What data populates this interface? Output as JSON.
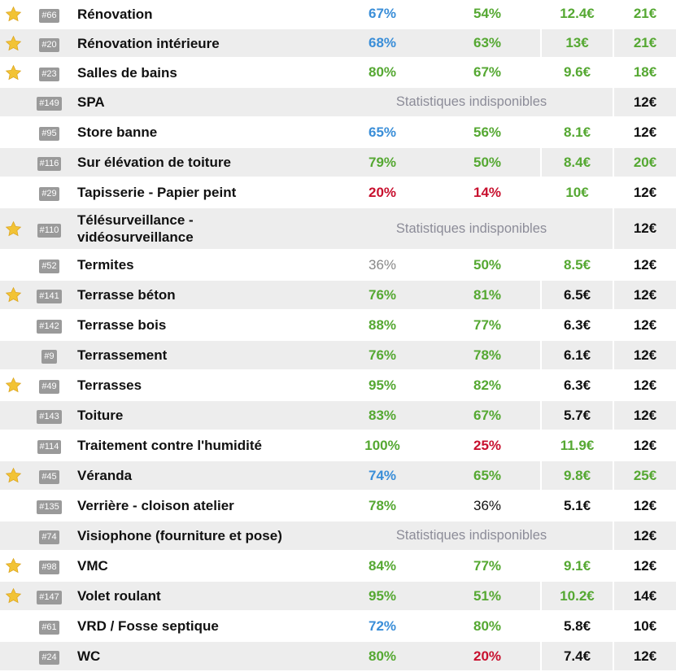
{
  "rows": [
    {
      "star": true,
      "id": "#66",
      "name": "Rénovation",
      "pct1": "67%",
      "pct1_color": "#3a8ed8",
      "pct2": "54%",
      "pct2_color": "#55a832",
      "price": "12.4€",
      "price_color": "#55a832",
      "offer": "21€",
      "offer_color": "#55a832",
      "stats_na": false
    },
    {
      "star": true,
      "id": "#20",
      "name": "Rénovation intérieure",
      "pct1": "68%",
      "pct1_color": "#3a8ed8",
      "pct2": "63%",
      "pct2_color": "#55a832",
      "price": "13€",
      "price_color": "#55a832",
      "offer": "21€",
      "offer_color": "#55a832",
      "stats_na": false
    },
    {
      "star": true,
      "id": "#23",
      "name": "Salles de bains",
      "pct1": "80%",
      "pct1_color": "#55a832",
      "pct2": "67%",
      "pct2_color": "#55a832",
      "price": "9.6€",
      "price_color": "#55a832",
      "offer": "18€",
      "offer_color": "#55a832",
      "stats_na": false
    },
    {
      "star": false,
      "id": "#149",
      "name": "SPA",
      "stats_na": true,
      "na_label": "Statistiques indisponibles",
      "offer": "12€",
      "offer_color": "#111111"
    },
    {
      "star": false,
      "id": "#95",
      "name": "Store banne",
      "pct1": "65%",
      "pct1_color": "#3a8ed8",
      "pct2": "56%",
      "pct2_color": "#55a832",
      "price": "8.1€",
      "price_color": "#55a832",
      "offer": "12€",
      "offer_color": "#111111",
      "stats_na": false
    },
    {
      "star": false,
      "id": "#116",
      "name": "Sur élévation de toiture",
      "pct1": "79%",
      "pct1_color": "#55a832",
      "pct2": "50%",
      "pct2_color": "#55a832",
      "price": "8.4€",
      "price_color": "#55a832",
      "offer": "20€",
      "offer_color": "#55a832",
      "stats_na": false
    },
    {
      "star": false,
      "id": "#29",
      "name": "Tapisserie - Papier peint",
      "pct1": "20%",
      "pct1_color": "#c8102e",
      "pct2": "14%",
      "pct2_color": "#c8102e",
      "price": "10€",
      "price_color": "#55a832",
      "offer": "12€",
      "offer_color": "#111111",
      "stats_na": false
    },
    {
      "star": true,
      "id": "#110",
      "name": "Télésurveillance - vidéosurveillance",
      "stats_na": true,
      "na_label": "Statistiques indisponibles",
      "offer": "12€",
      "offer_color": "#111111"
    },
    {
      "star": false,
      "id": "#52",
      "name": "Termites",
      "pct1": "36%",
      "pct1_color": "#888888",
      "pct1_weight": "normal",
      "pct2": "50%",
      "pct2_color": "#55a832",
      "price": "8.5€",
      "price_color": "#55a832",
      "offer": "12€",
      "offer_color": "#111111",
      "stats_na": false
    },
    {
      "star": true,
      "id": "#141",
      "name": "Terrasse béton",
      "pct1": "76%",
      "pct1_color": "#55a832",
      "pct2": "81%",
      "pct2_color": "#55a832",
      "price": "6.5€",
      "price_color": "#111111",
      "offer": "12€",
      "offer_color": "#111111",
      "stats_na": false
    },
    {
      "star": false,
      "id": "#142",
      "name": "Terrasse bois",
      "pct1": "88%",
      "pct1_color": "#55a832",
      "pct2": "77%",
      "pct2_color": "#55a832",
      "price": "6.3€",
      "price_color": "#111111",
      "offer": "12€",
      "offer_color": "#111111",
      "stats_na": false
    },
    {
      "star": false,
      "id": "#9",
      "name": "Terrassement",
      "pct1": "76%",
      "pct1_color": "#55a832",
      "pct2": "78%",
      "pct2_color": "#55a832",
      "price": "6.1€",
      "price_color": "#111111",
      "offer": "12€",
      "offer_color": "#111111",
      "stats_na": false
    },
    {
      "star": true,
      "id": "#49",
      "name": "Terrasses",
      "pct1": "95%",
      "pct1_color": "#55a832",
      "pct2": "82%",
      "pct2_color": "#55a832",
      "price": "6.3€",
      "price_color": "#111111",
      "offer": "12€",
      "offer_color": "#111111",
      "stats_na": false
    },
    {
      "star": false,
      "id": "#143",
      "name": "Toiture",
      "pct1": "83%",
      "pct1_color": "#55a832",
      "pct2": "67%",
      "pct2_color": "#55a832",
      "price": "5.7€",
      "price_color": "#111111",
      "offer": "12€",
      "offer_color": "#111111",
      "stats_na": false
    },
    {
      "star": false,
      "id": "#114",
      "name": "Traitement contre l'humidité",
      "pct1": "100%",
      "pct1_color": "#55a832",
      "pct2": "25%",
      "pct2_color": "#c8102e",
      "price": "11.9€",
      "price_color": "#55a832",
      "offer": "12€",
      "offer_color": "#111111",
      "stats_na": false
    },
    {
      "star": true,
      "id": "#45",
      "name": "Véranda",
      "pct1": "74%",
      "pct1_color": "#3a8ed8",
      "pct2": "65%",
      "pct2_color": "#55a832",
      "price": "9.8€",
      "price_color": "#55a832",
      "offer": "25€",
      "offer_color": "#55a832",
      "stats_na": false
    },
    {
      "star": false,
      "id": "#135",
      "name": "Verrière - cloison atelier",
      "pct1": "78%",
      "pct1_color": "#55a832",
      "pct2": "36%",
      "pct2_color": "#111111",
      "price": "5.1€",
      "price_color": "#111111",
      "offer": "12€",
      "offer_color": "#111111",
      "stats_na": false
    },
    {
      "star": false,
      "id": "#74",
      "name": "Visiophone (fourniture et pose)",
      "stats_na": true,
      "na_label": "Statistiques indisponibles",
      "offer": "12€",
      "offer_color": "#111111"
    },
    {
      "star": true,
      "id": "#98",
      "name": "VMC",
      "pct1": "84%",
      "pct1_color": "#55a832",
      "pct2": "77%",
      "pct2_color": "#55a832",
      "price": "9.1€",
      "price_color": "#55a832",
      "offer": "12€",
      "offer_color": "#111111",
      "stats_na": false
    },
    {
      "star": true,
      "id": "#147",
      "name": "Volet roulant",
      "pct1": "95%",
      "pct1_color": "#55a832",
      "pct2": "51%",
      "pct2_color": "#55a832",
      "price": "10.2€",
      "price_color": "#55a832",
      "offer": "14€",
      "offer_color": "#111111",
      "stats_na": false
    },
    {
      "star": false,
      "id": "#61",
      "name": "VRD / Fosse septique",
      "pct1": "72%",
      "pct1_color": "#3a8ed8",
      "pct2": "80%",
      "pct2_color": "#55a832",
      "price": "5.8€",
      "price_color": "#111111",
      "offer": "10€",
      "offer_color": "#111111",
      "stats_na": false
    },
    {
      "star": false,
      "id": "#24",
      "name": "WC",
      "pct1": "80%",
      "pct1_color": "#55a832",
      "pct2": "20%",
      "pct2_color": "#c8102e",
      "price": "7.4€",
      "price_color": "#111111",
      "offer": "12€",
      "offer_color": "#111111",
      "stats_na": false
    }
  ],
  "star_color": "#f2c335",
  "star_icon": "star-icon"
}
